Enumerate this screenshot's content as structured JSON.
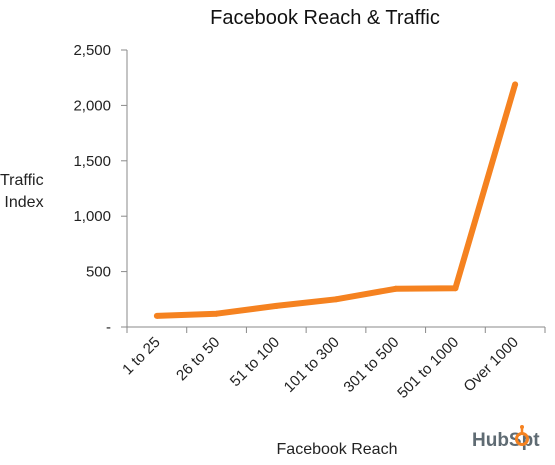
{
  "chart_data": {
    "type": "line",
    "title": "Facebook Reach & Traffic",
    "xlabel": "Facebook Reach",
    "ylabel_lines": [
      "Traffic",
      "Index"
    ],
    "categories": [
      "1 to 25",
      "26 to 50",
      "51 to 100",
      "101 to 300",
      "301 to 500",
      "501 to 1000",
      "Over 1000"
    ],
    "series": [
      {
        "values": [
          100,
          120,
          190,
          250,
          345,
          350,
          2190
        ]
      }
    ],
    "ylim": [
      0,
      2500
    ],
    "yticks": [
      0,
      500,
      1000,
      1500,
      2000,
      2500
    ],
    "ytick_labels": [
      "-",
      "500",
      "1,000",
      "1,500",
      "2,000",
      "2,500"
    ],
    "grid": false,
    "legend": "none",
    "line_color": "#f58220"
  },
  "branding": {
    "logo_text_a": "HubSp",
    "logo_text_b": "t",
    "accent": "#f58220"
  }
}
